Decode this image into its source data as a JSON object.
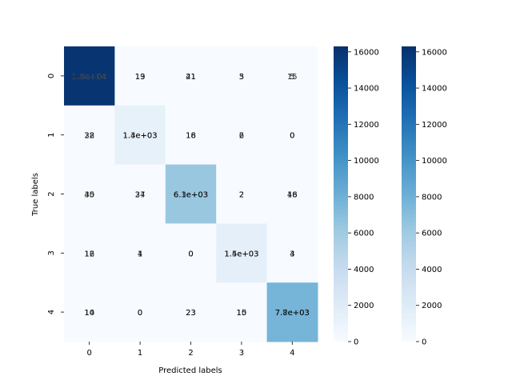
{
  "chart_data": {
    "type": "heatmap",
    "title": "",
    "xlabel": "Predicted labels",
    "ylabel": "True labels",
    "x_categories": [
      "0",
      "1",
      "2",
      "3",
      "4"
    ],
    "y_categories": [
      "0",
      "1",
      "2",
      "3",
      "4"
    ],
    "colormap": "Blues",
    "vmin": 0,
    "vmax": 16300,
    "matrix": [
      [
        16000,
        19,
        21,
        5,
        15
      ],
      [
        32,
        1300,
        16,
        6,
        0
      ],
      [
        40,
        27,
        6300,
        2,
        16
      ],
      [
        12,
        1,
        0,
        1500,
        4
      ],
      [
        10,
        0,
        23,
        10,
        7700
      ]
    ],
    "cell_labels_a": [
      [
        "1.6e+04",
        "19",
        "21",
        "5",
        "15"
      ],
      [
        "32",
        "1.3e+03",
        "16",
        "6",
        "0"
      ],
      [
        "40",
        "27",
        "6.3e+03",
        "2",
        "16"
      ],
      [
        "12",
        "1",
        "0",
        "1.5e+03",
        "4"
      ],
      [
        "10",
        "0",
        "23",
        "10",
        "7.7e+03"
      ]
    ],
    "cell_labels_b": [
      [
        "1.6e+04",
        "13",
        "41",
        "3",
        "5"
      ],
      [
        "28",
        "1.4e+03",
        "18",
        "2",
        "0"
      ],
      [
        "35",
        "34",
        "6.1e+03",
        "2",
        "48"
      ],
      [
        "16",
        "4",
        "0",
        "1.4e+03",
        "3"
      ],
      [
        "14",
        "0",
        "23",
        "15",
        "7.8e+03"
      ]
    ],
    "colorbars": [
      {
        "ticks": [
          0,
          2000,
          4000,
          6000,
          8000,
          10000,
          12000,
          14000,
          16000
        ],
        "range": [
          0,
          16300
        ]
      },
      {
        "ticks": [
          0,
          2000,
          4000,
          6000,
          8000,
          10000,
          12000,
          14000,
          16000
        ],
        "range": [
          0,
          16300
        ]
      }
    ],
    "grid": false,
    "legend": "none"
  }
}
